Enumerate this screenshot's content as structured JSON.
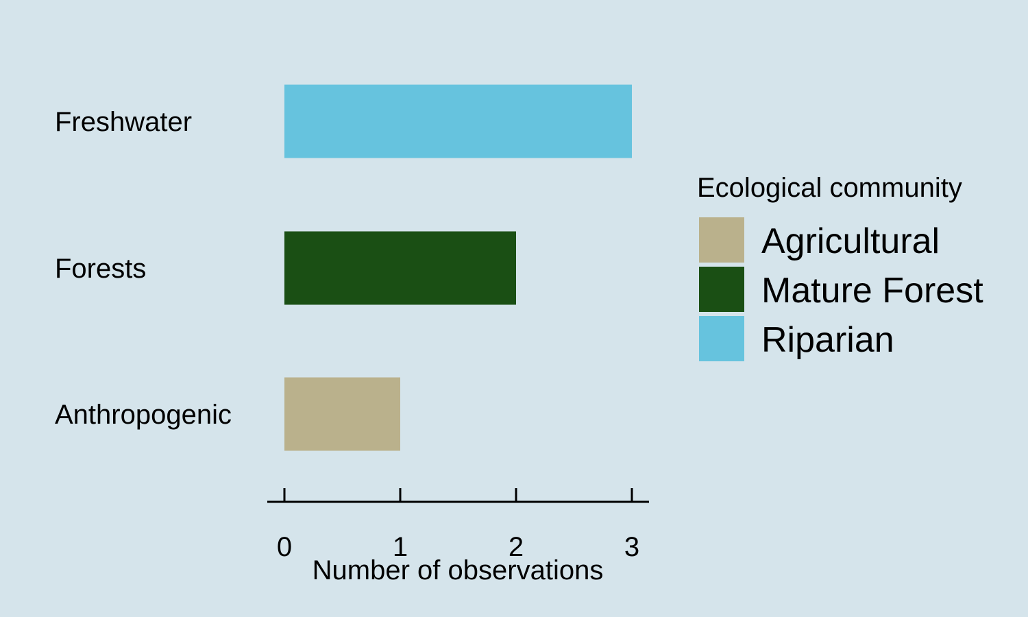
{
  "chart_data": {
    "type": "bar",
    "orientation": "horizontal",
    "categories": [
      "Anthropogenic",
      "Forests",
      "Freshwater"
    ],
    "values": [
      1,
      2,
      3
    ],
    "bar_groups": [
      "Agricultural",
      "Mature Forest",
      "Riparian"
    ],
    "xlabel": "Number of observations",
    "ylabel": "",
    "xlim": [
      0,
      3
    ],
    "xticks": [
      "0",
      "1",
      "2",
      "3"
    ],
    "grid": false,
    "legend": {
      "title": "Ecological community",
      "position": "right",
      "entries": [
        {
          "label": "Agricultural",
          "color": "#bab18c"
        },
        {
          "label": "Mature Forest",
          "color": "#1a4f14"
        },
        {
          "label": "Riparian",
          "color": "#66c3de"
        }
      ]
    }
  },
  "colors": {
    "background": "#d5e4eb",
    "axis": "#000000"
  }
}
